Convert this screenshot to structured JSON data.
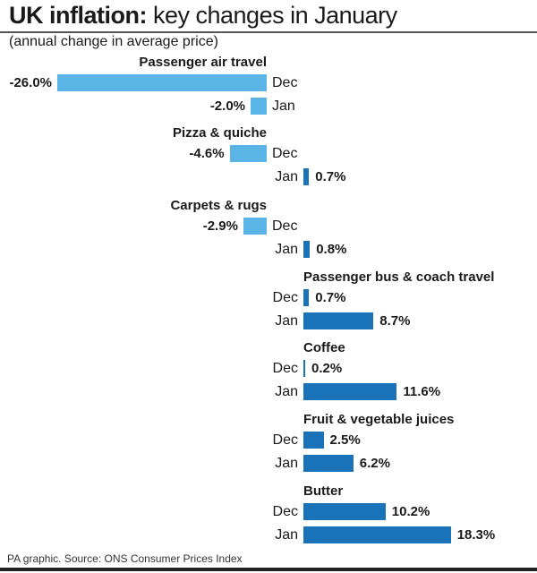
{
  "header": {
    "title_bold": "UK inflation:",
    "title_rest": " key changes in January",
    "subtitle": "(annual change in average price)"
  },
  "footer": {
    "source": "PA graphic. Source: ONS Consumer Prices Index"
  },
  "colors": {
    "negative_bar": "#5ab4e5",
    "positive_bar": "#1a73b8",
    "text": "#1a1a1a"
  },
  "labels": {
    "dec": "Dec",
    "jan": "Jan"
  },
  "chart_data": {
    "type": "bar",
    "orientation": "horizontal",
    "title": "UK inflation: key changes in January",
    "subtitle": "(annual change in average price)",
    "unit": "%",
    "categories": [
      "Passenger air travel",
      "Pizza & quiche",
      "Carpets & rugs",
      "Passenger bus & coach travel",
      "Coffee",
      "Fruit & vegetable juices",
      "Butter"
    ],
    "series": [
      {
        "name": "Dec",
        "values": [
          -26.0,
          -4.6,
          -2.9,
          0.7,
          0.2,
          2.5,
          10.2
        ]
      },
      {
        "name": "Jan",
        "values": [
          -2.0,
          0.7,
          0.8,
          8.7,
          11.6,
          6.2,
          18.3
        ]
      }
    ],
    "value_labels": {
      "Dec": [
        "-26.0%",
        "-4.6%",
        "-2.9%",
        "0.7%",
        "0.2%",
        "2.5%",
        "10.2%"
      ],
      "Jan": [
        "-2.0%",
        "0.7%",
        "0.8%",
        "8.7%",
        "11.6%",
        "6.2%",
        "18.3%"
      ]
    },
    "xlabel": "",
    "ylabel": "",
    "grid": false,
    "legend": "none (Dec/Jan labelled inline)",
    "source": "PA graphic. Source: ONS Consumer Prices Index"
  }
}
